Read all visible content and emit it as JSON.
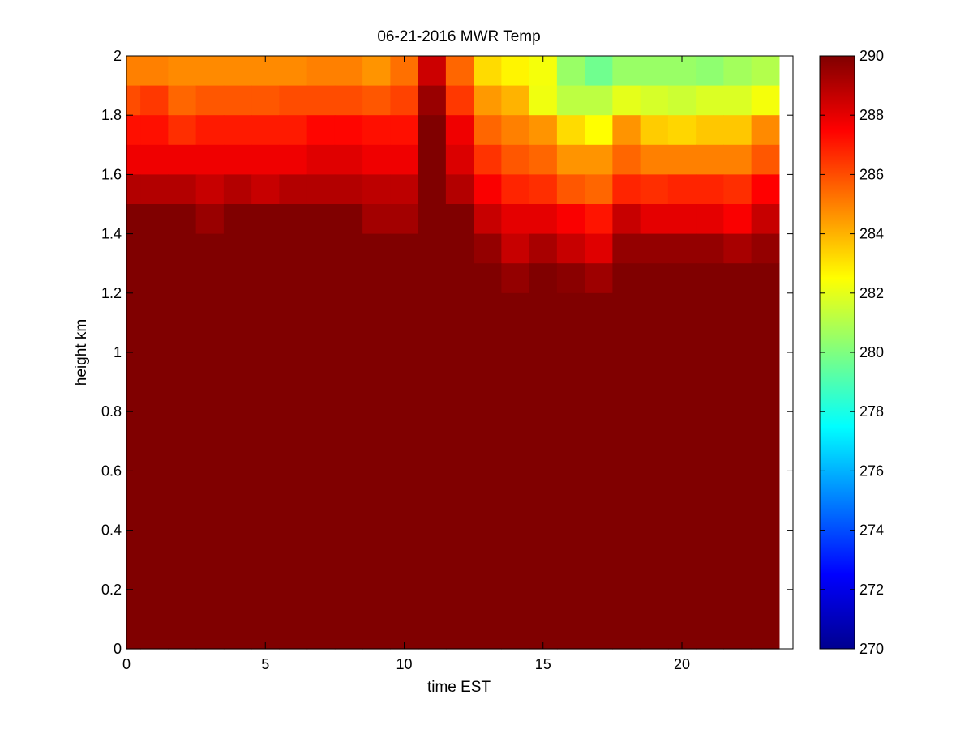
{
  "chart_data": {
    "type": "heatmap",
    "title": "06-21-2016 MWR Temp",
    "xlabel": "time EST",
    "ylabel": "height km",
    "xlim": [
      0,
      24
    ],
    "ylim": [
      0,
      2
    ],
    "x_ticks": [
      0,
      5,
      10,
      15,
      20
    ],
    "y_ticks": [
      0,
      0.2,
      0.4,
      0.6,
      0.8,
      1,
      1.2,
      1.4,
      1.6,
      1.8,
      2
    ],
    "y_tick_labels": [
      "0",
      "0.2",
      "0.4",
      "0.6",
      "0.8",
      "1",
      "1.2",
      "1.4",
      "1.6",
      "1.8",
      "2"
    ],
    "colormap": "jet",
    "clim": [
      270,
      290
    ],
    "colorbar_ticks": [
      270,
      272,
      274,
      276,
      278,
      280,
      282,
      284,
      286,
      288,
      290
    ],
    "x_centers": [
      0,
      1,
      2,
      3,
      4,
      5,
      6,
      7,
      8,
      9,
      10,
      11,
      12,
      13,
      14,
      15,
      16,
      17,
      18,
      19,
      20,
      21,
      22,
      23
    ],
    "height_bands": [
      {
        "y_range": [
          1.9,
          2.0
        ],
        "values": [
          285.0,
          285.0,
          284.8,
          284.8,
          284.8,
          284.8,
          284.8,
          285.0,
          285.0,
          284.6,
          285.3,
          288.5,
          285.5,
          283.2,
          282.7,
          282.3,
          280.5,
          279.7,
          280.5,
          280.5,
          280.5,
          280.3,
          280.7,
          281.0
        ]
      },
      {
        "y_range": [
          1.8,
          1.9
        ],
        "values": [
          286.0,
          286.4,
          285.5,
          285.8,
          285.8,
          285.8,
          286.0,
          286.0,
          286.0,
          285.8,
          286.2,
          289.5,
          286.4,
          284.5,
          284.0,
          282.2,
          281.2,
          281.2,
          282.0,
          281.7,
          281.5,
          281.8,
          281.8,
          282.3
        ]
      },
      {
        "y_range": [
          1.7,
          1.8
        ],
        "values": [
          287.2,
          287.2,
          286.6,
          287.0,
          287.0,
          287.0,
          287.0,
          287.4,
          287.4,
          287.2,
          287.2,
          290.0,
          287.8,
          285.5,
          285.0,
          284.6,
          283.2,
          282.5,
          284.6,
          283.5,
          283.3,
          283.6,
          283.6,
          284.8
        ]
      },
      {
        "y_range": [
          1.6,
          1.7
        ],
        "values": [
          287.8,
          287.8,
          287.8,
          287.8,
          287.8,
          287.8,
          287.8,
          288.1,
          288.1,
          287.8,
          287.8,
          290.0,
          288.2,
          286.5,
          285.8,
          285.5,
          284.6,
          284.6,
          285.5,
          285.0,
          285.0,
          285.0,
          285.0,
          285.8
        ]
      },
      {
        "y_range": [
          1.5,
          1.6
        ],
        "values": [
          289.0,
          289.0,
          289.0,
          288.6,
          289.0,
          288.6,
          289.0,
          289.0,
          289.0,
          288.8,
          288.8,
          290.0,
          289.0,
          287.6,
          286.8,
          286.6,
          285.8,
          285.5,
          286.8,
          286.6,
          286.8,
          286.8,
          286.6,
          287.5
        ]
      },
      {
        "y_range": [
          1.4,
          1.5
        ],
        "values": [
          290.0,
          290.0,
          290.0,
          289.5,
          290.0,
          290.0,
          290.0,
          290.0,
          290.0,
          289.3,
          289.3,
          290.0,
          290.0,
          288.6,
          288.0,
          288.0,
          287.6,
          287.1,
          288.6,
          288.0,
          288.0,
          288.0,
          287.6,
          288.6
        ]
      },
      {
        "y_range": [
          1.3,
          1.4
        ],
        "values": [
          290.0,
          290.0,
          290.0,
          290.0,
          290.0,
          290.0,
          290.0,
          290.0,
          290.0,
          290.0,
          290.0,
          290.0,
          290.0,
          289.6,
          288.6,
          289.2,
          288.6,
          288.1,
          289.6,
          289.6,
          289.6,
          289.6,
          289.2,
          289.6
        ]
      },
      {
        "y_range": [
          1.2,
          1.3
        ],
        "values": [
          290.0,
          290.0,
          290.0,
          290.0,
          290.0,
          290.0,
          290.0,
          290.0,
          290.0,
          290.0,
          290.0,
          290.0,
          290.0,
          290.0,
          289.6,
          290.0,
          289.8,
          289.4,
          290.0,
          290.0,
          290.0,
          290.0,
          290.0,
          290.0
        ]
      },
      {
        "y_range": [
          0.0,
          1.2
        ],
        "values": [
          290.0,
          290.0,
          290.0,
          290.0,
          290.0,
          290.0,
          290.0,
          290.0,
          290.0,
          290.0,
          290.0,
          290.0,
          290.0,
          290.0,
          290.0,
          290.0,
          290.0,
          290.0,
          290.0,
          290.0,
          290.0,
          290.0,
          290.0,
          290.0
        ]
      }
    ],
    "grid": false
  }
}
